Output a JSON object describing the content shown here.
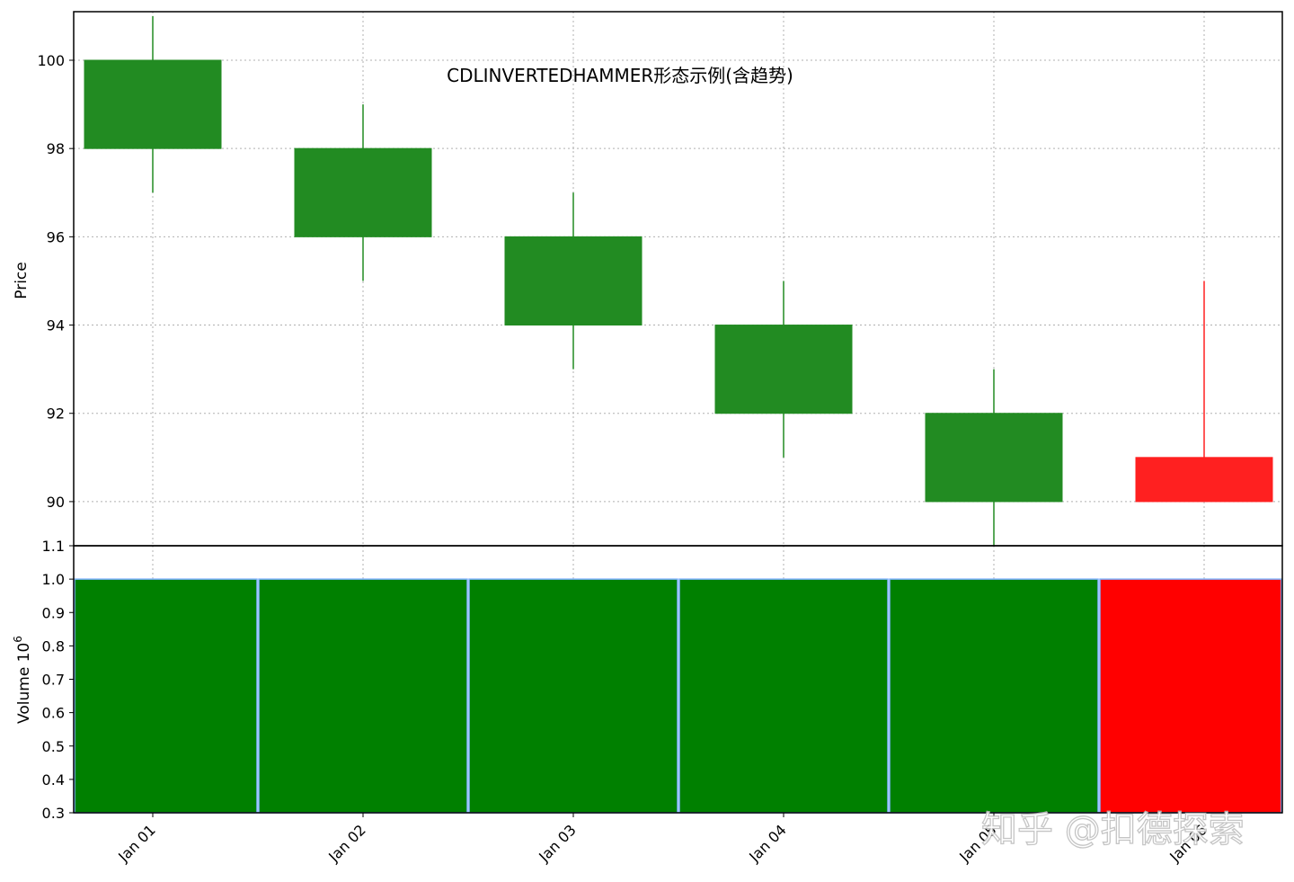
{
  "chart_data": {
    "type": "candlestick",
    "title": "CDLINVERTEDHAMMER形态示例(含趋势)",
    "categories": [
      "Jan 01",
      "Jan 02",
      "Jan 03",
      "Jan 04",
      "Jan 05",
      "Jan 06"
    ],
    "ohlc": [
      {
        "open": 100,
        "high": 101,
        "low": 97,
        "close": 98
      },
      {
        "open": 98,
        "high": 99,
        "low": 95,
        "close": 96
      },
      {
        "open": 96,
        "high": 97,
        "low": 93,
        "close": 94
      },
      {
        "open": 94,
        "high": 95,
        "low": 91,
        "close": 92
      },
      {
        "open": 92,
        "high": 93,
        "low": 89,
        "close": 90
      },
      {
        "open": 90,
        "high": 95,
        "low": 90,
        "close": 91
      }
    ],
    "price_panel": {
      "ylabel": "Price",
      "ylim": [
        89,
        101.1
      ],
      "yticks": [
        90,
        92,
        94,
        96,
        98,
        100
      ],
      "grid": true
    },
    "volume_panel": {
      "ylabel": "Volume  10",
      "ylabel_exponent": "6",
      "ylim": [
        0.3,
        1.1
      ],
      "yticks": [
        "0.3",
        "0.4",
        "0.5",
        "0.6",
        "0.7",
        "0.8",
        "0.9",
        "1.0",
        "1.1"
      ],
      "values": [
        1.0,
        1.0,
        1.0,
        1.0,
        1.0,
        1.0
      ]
    },
    "colors": {
      "up": "#ff0000",
      "down": "#008000",
      "candle_down": "#228b22",
      "candle_up": "#ff2020",
      "volume_edge": "#7fb2ff",
      "grid": "#b0b0b0"
    }
  },
  "watermark": "知乎 @扣德探索"
}
